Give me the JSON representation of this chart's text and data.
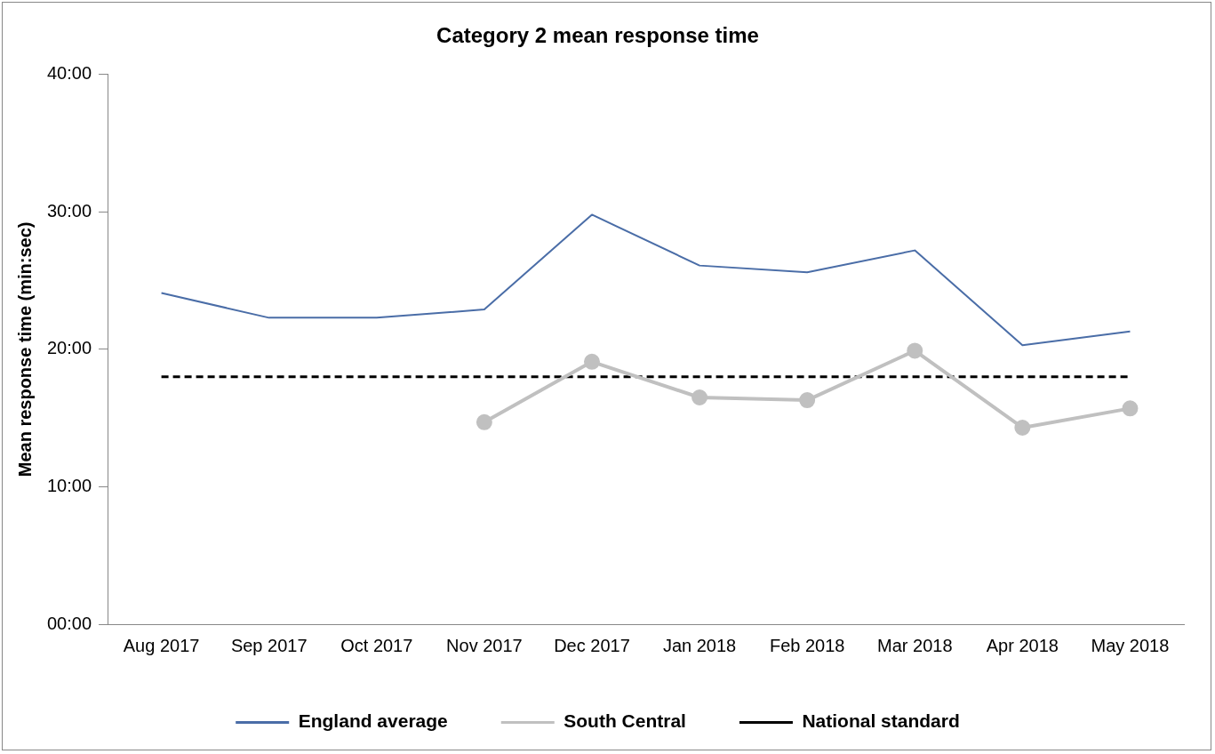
{
  "chart_data": {
    "type": "line",
    "title": "Category 2 mean response time",
    "ylabel": "Mean response time (min:sec)",
    "categories": [
      "Aug 2017",
      "Sep 2017",
      "Oct 2017",
      "Nov 2017",
      "Dec 2017",
      "Jan 2018",
      "Feb 2018",
      "Mar 2018",
      "Apr 2018",
      "May 2018"
    ],
    "series": [
      {
        "name": "England average",
        "color": "#4a6da7",
        "marker": "none",
        "values": [
          24.1,
          22.3,
          22.3,
          22.9,
          29.8,
          26.1,
          25.6,
          27.2,
          20.3,
          21.3
        ]
      },
      {
        "name": "South Central",
        "color": "#c0c0c0",
        "marker": "circle",
        "values": [
          null,
          null,
          null,
          14.7,
          19.1,
          16.5,
          16.3,
          19.9,
          14.3,
          15.7
        ]
      }
    ],
    "ref_lines": [
      {
        "axis": "y",
        "value": 18,
        "label": "National standard",
        "color": "#000000",
        "line_style": "dashed"
      }
    ],
    "ylim": [
      0,
      40
    ],
    "yticks": [
      {
        "value": 0,
        "label": "00:00"
      },
      {
        "value": 10,
        "label": "10:00"
      },
      {
        "value": 20,
        "label": "20:00"
      },
      {
        "value": 30,
        "label": "30:00"
      },
      {
        "value": 40,
        "label": "40:00"
      }
    ],
    "grid": false,
    "legend": "bottom"
  }
}
